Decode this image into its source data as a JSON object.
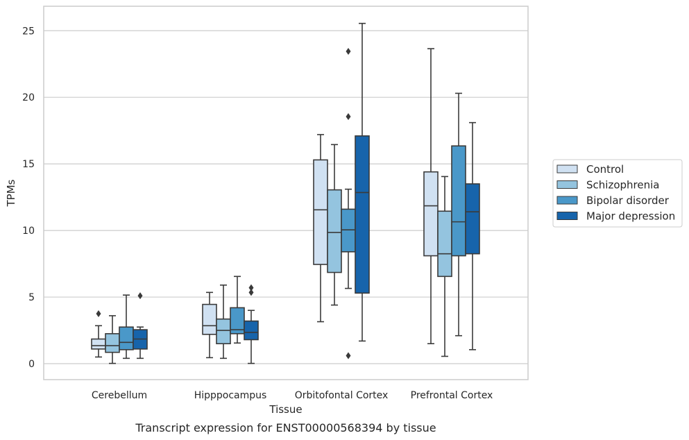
{
  "caption": "Transcript expression for ENST00000568394 by tissue",
  "chart_data": {
    "type": "box",
    "xlabel": "Tissue",
    "ylabel": "TPMs",
    "ylim": [
      -1.2,
      26.8
    ],
    "yticks": [
      0,
      5,
      10,
      15,
      20,
      25
    ],
    "grid": "horizontal",
    "legend_position": "right",
    "categories": [
      "Cerebellum",
      "Hipppocampus",
      "Orbitofontal Cortex",
      "Prefrontal Cortex"
    ],
    "series": [
      {
        "name": "Control",
        "color": "#d0e1f2",
        "boxes": [
          {
            "whislo": 0.5,
            "q1": 1.1,
            "med": 1.35,
            "q3": 1.85,
            "whishi": 2.85,
            "fliers": [
              3.75
            ]
          },
          {
            "whislo": 0.45,
            "q1": 2.2,
            "med": 2.85,
            "q3": 4.45,
            "whishi": 5.35,
            "fliers": []
          },
          {
            "whislo": 3.15,
            "q1": 7.45,
            "med": 11.55,
            "q3": 15.3,
            "whishi": 17.2,
            "fliers": []
          },
          {
            "whislo": 1.5,
            "q1": 8.1,
            "med": 11.85,
            "q3": 14.4,
            "whishi": 23.65,
            "fliers": []
          }
        ]
      },
      {
        "name": "Schizophrenia",
        "color": "#94c4df",
        "boxes": [
          {
            "whislo": 0.02,
            "q1": 0.85,
            "med": 1.35,
            "q3": 2.25,
            "whishi": 3.6,
            "fliers": []
          },
          {
            "whislo": 0.4,
            "q1": 1.5,
            "med": 2.5,
            "q3": 3.35,
            "whishi": 5.9,
            "fliers": []
          },
          {
            "whislo": 4.4,
            "q1": 6.85,
            "med": 9.85,
            "q3": 13.05,
            "whishi": 16.45,
            "fliers": []
          },
          {
            "whislo": 0.55,
            "q1": 6.55,
            "med": 8.25,
            "q3": 11.45,
            "whishi": 14.05,
            "fliers": []
          }
        ]
      },
      {
        "name": "Bipolar disorder",
        "color": "#4a98c9",
        "boxes": [
          {
            "whislo": 0.4,
            "q1": 1.05,
            "med": 1.6,
            "q3": 2.75,
            "whishi": 5.15,
            "fliers": []
          },
          {
            "whislo": 1.55,
            "q1": 2.25,
            "med": 2.55,
            "q3": 4.2,
            "whishi": 6.55,
            "fliers": []
          },
          {
            "whislo": 5.65,
            "q1": 8.4,
            "med": 10.05,
            "q3": 11.6,
            "whishi": 13.1,
            "fliers": [
              23.45,
              18.55,
              0.6
            ]
          },
          {
            "whislo": 2.1,
            "q1": 8.1,
            "med": 10.65,
            "q3": 16.35,
            "whishi": 20.3,
            "fliers": []
          }
        ]
      },
      {
        "name": "Major depression",
        "color": "#1764ab",
        "boxes": [
          {
            "whislo": 0.4,
            "q1": 1.1,
            "med": 1.85,
            "q3": 2.55,
            "whishi": 2.75,
            "fliers": [
              5.1
            ]
          },
          {
            "whislo": 0.02,
            "q1": 1.8,
            "med": 2.35,
            "q3": 3.2,
            "whishi": 4.0,
            "fliers": [
              5.7,
              5.35
            ]
          },
          {
            "whislo": 1.7,
            "q1": 5.3,
            "med": 12.85,
            "q3": 17.1,
            "whishi": 25.55,
            "fliers": []
          },
          {
            "whislo": 1.05,
            "q1": 8.25,
            "med": 11.4,
            "q3": 13.5,
            "whishi": 18.1,
            "fliers": []
          }
        ]
      }
    ]
  }
}
